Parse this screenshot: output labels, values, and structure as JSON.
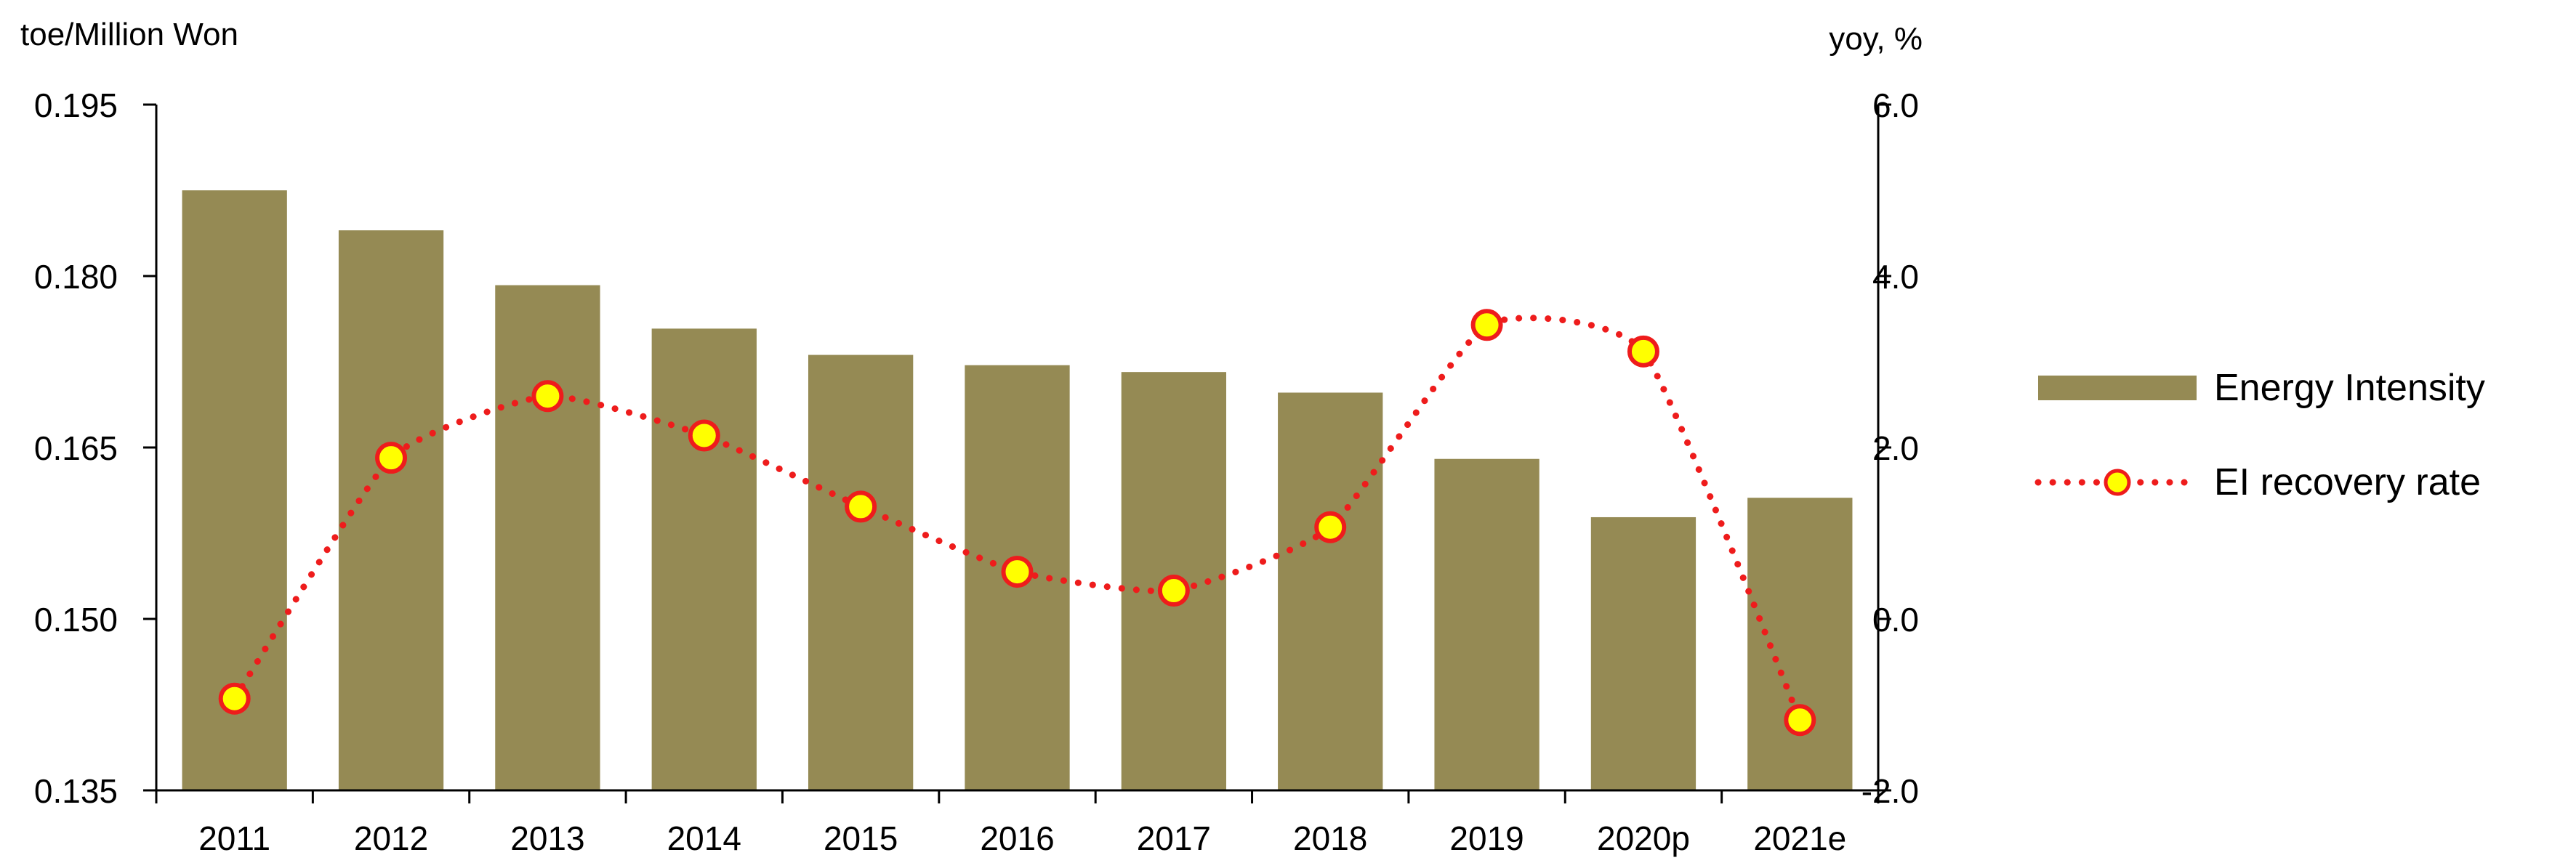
{
  "chart_data": {
    "type": "bar+line",
    "categories": [
      "2011",
      "2012",
      "2013",
      "2014",
      "2015",
      "2016",
      "2017",
      "2018",
      "2019",
      "2020p",
      "2021e"
    ],
    "series": [
      {
        "name": "Energy Intensity",
        "type": "bar",
        "axis": "left",
        "color": "#958A54",
        "values": [
          0.1875,
          0.184,
          0.1792,
          0.1754,
          0.1731,
          0.1722,
          0.1716,
          0.1698,
          0.164,
          0.1589,
          0.1606
        ]
      },
      {
        "name": "EI recovery rate",
        "type": "line",
        "axis": "right",
        "line_color": "#EE1C1C",
        "marker_fill": "#FFFF00",
        "marker_edge": "#EE1C1C",
        "line_style": "dotted",
        "values": [
          -0.93,
          1.88,
          2.6,
          2.14,
          1.31,
          0.55,
          0.33,
          1.07,
          3.43,
          3.12,
          -1.18
        ]
      }
    ],
    "left_axis": {
      "label": "toe/Million Won",
      "ylim": [
        0.135,
        0.195
      ],
      "ticks": [
        "0.195",
        "0.180",
        "0.165",
        "0.150",
        "0.135"
      ],
      "tick_values": [
        0.195,
        0.18,
        0.165,
        0.15,
        0.135
      ]
    },
    "right_axis": {
      "label": "yoy, %",
      "ylim": [
        -2.0,
        6.0
      ],
      "ticks": [
        "6.0",
        "4.0",
        "2.0",
        "0.0",
        "-2.0"
      ],
      "tick_values": [
        6,
        4,
        2,
        0,
        -2
      ]
    },
    "grid": false,
    "legend_position": "right"
  }
}
